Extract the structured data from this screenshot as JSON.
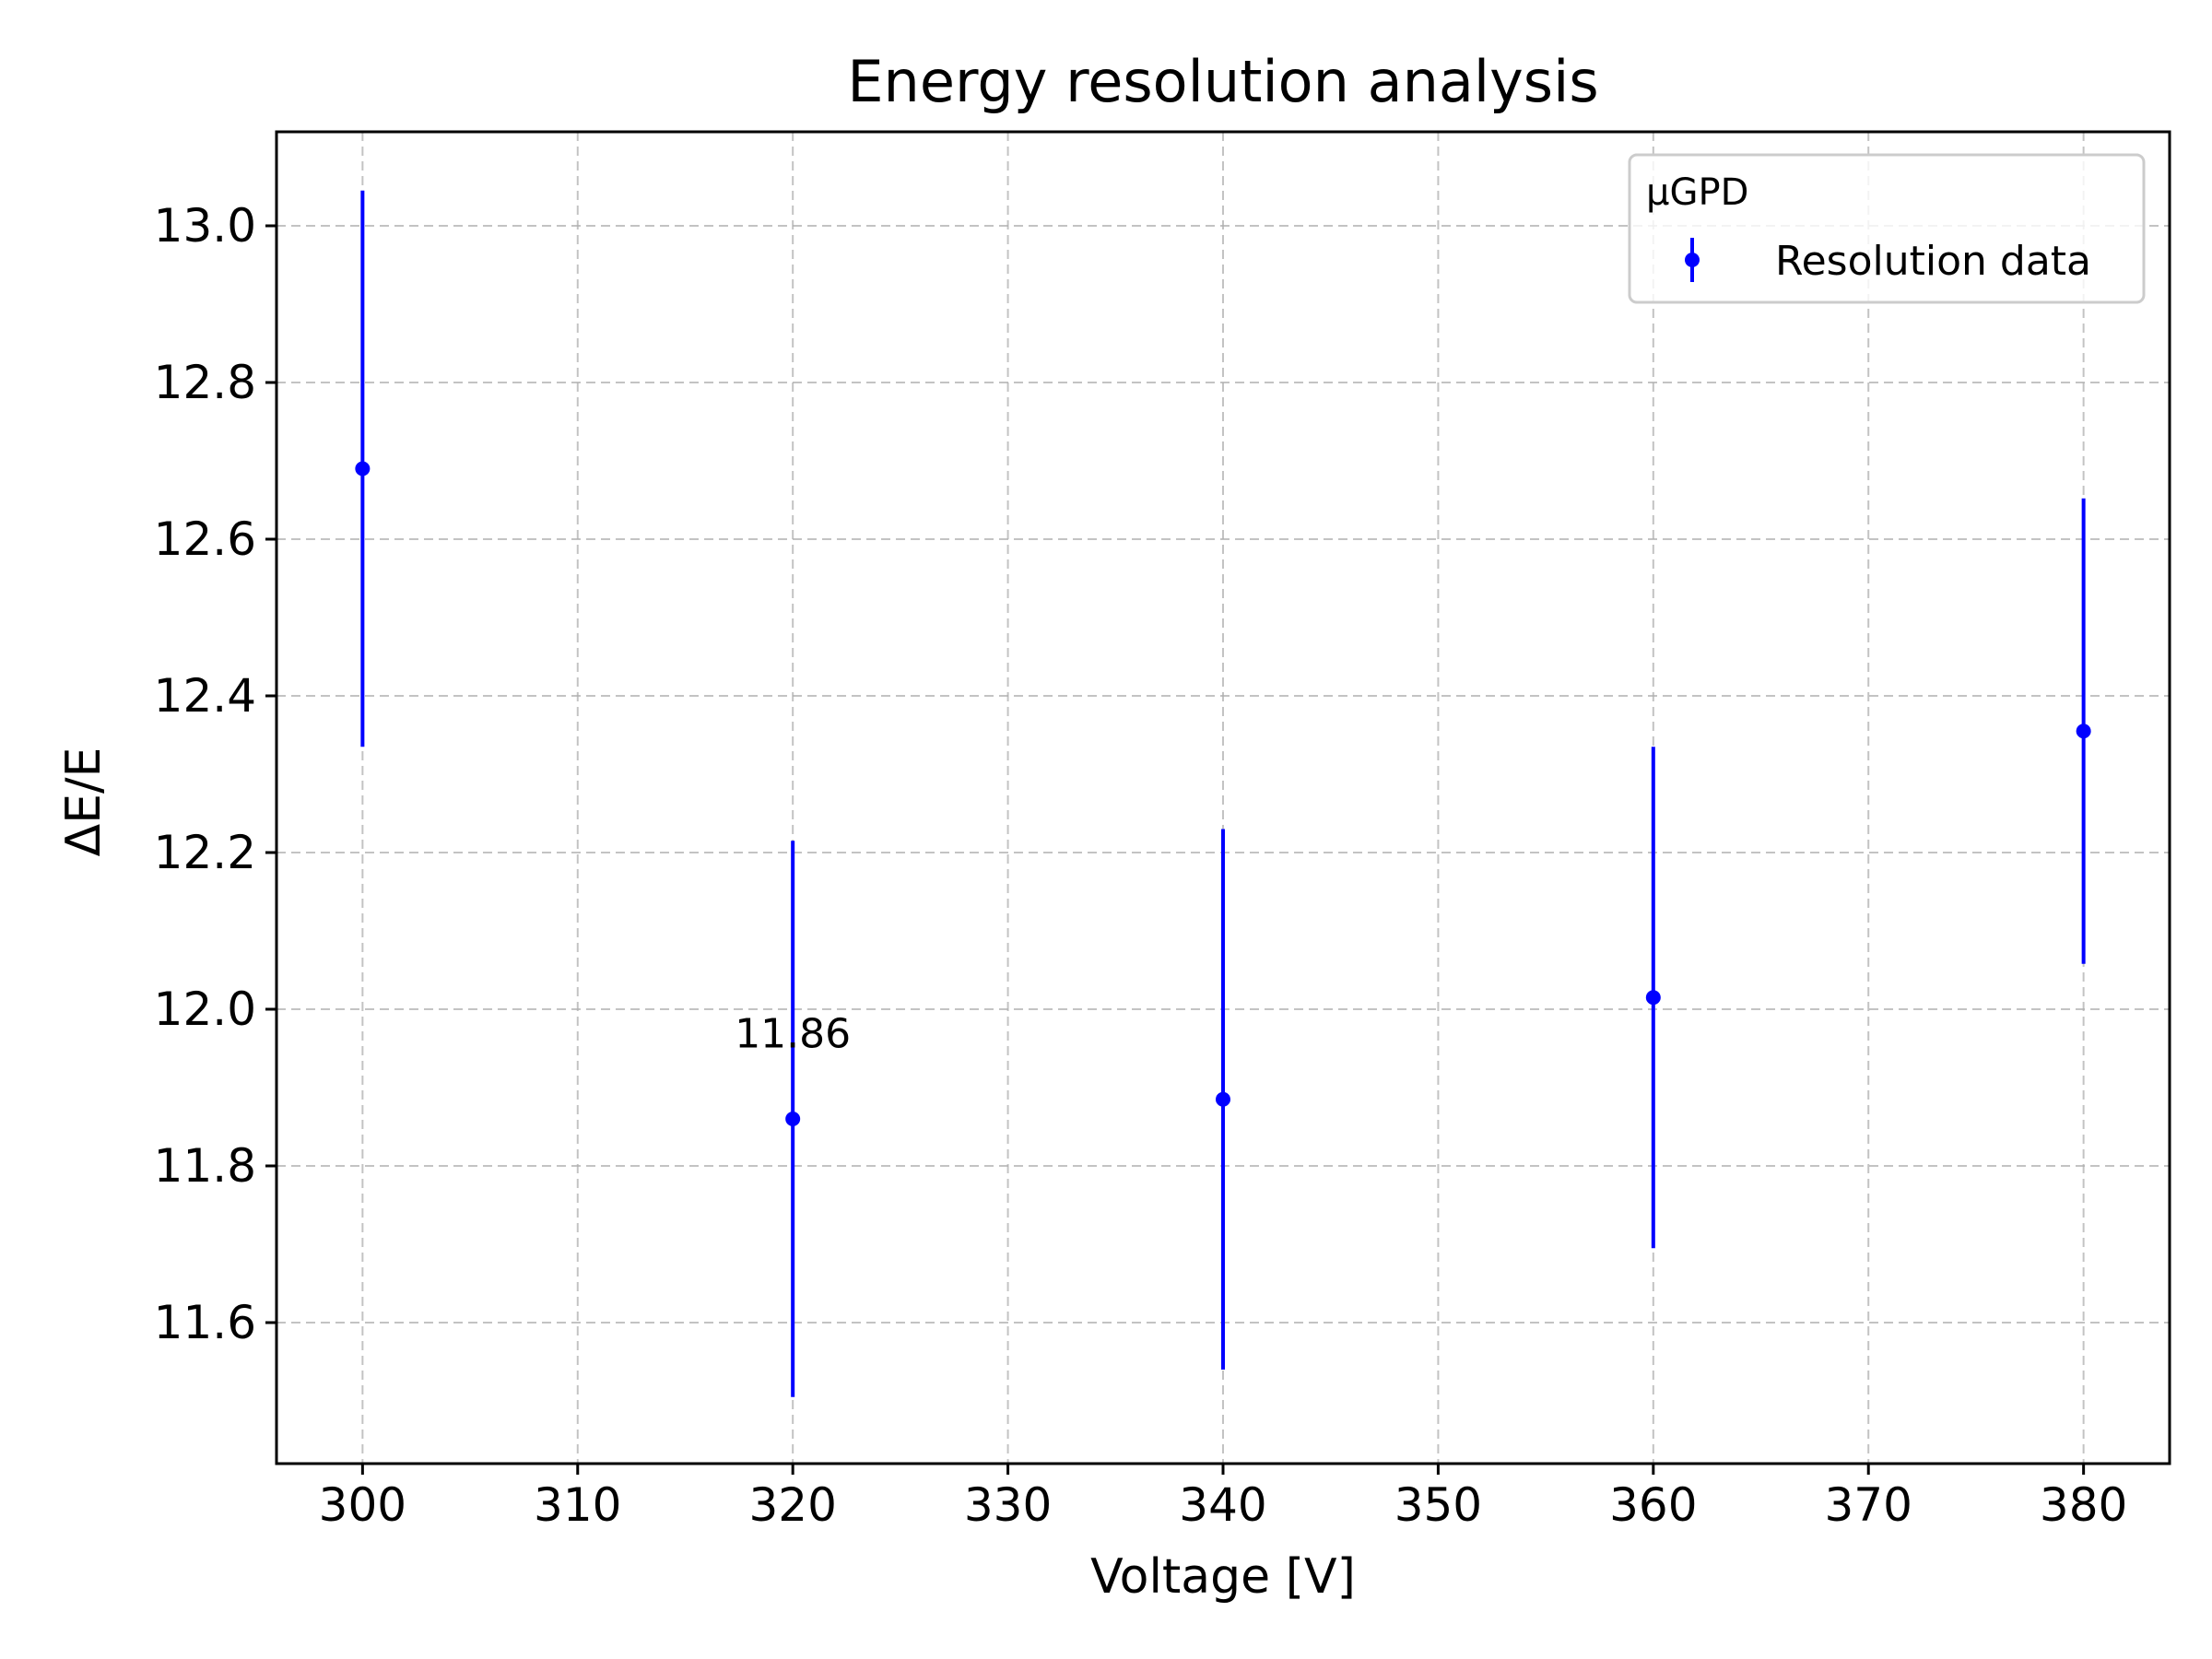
{
  "chart_data": {
    "type": "scatter",
    "title": "Energy resolution analysis",
    "xlabel": "Voltage [V]",
    "ylabel": "ΔE/E",
    "xlim": [
      296,
      384
    ],
    "ylim": [
      11.42,
      13.12
    ],
    "xticks": [
      300,
      310,
      320,
      330,
      340,
      350,
      360,
      370,
      380
    ],
    "xtick_labels": [
      "300",
      "310",
      "320",
      "330",
      "340",
      "350",
      "360",
      "370",
      "380"
    ],
    "yticks": [
      11.6,
      11.8,
      12.0,
      12.2,
      12.4,
      12.6,
      12.8,
      13.0
    ],
    "ytick_labels": [
      "11.6",
      "11.8",
      "12.0",
      "12.2",
      "12.4",
      "12.6",
      "12.8",
      "13.0"
    ],
    "grid": true,
    "series": [
      {
        "name": "Resolution data",
        "color": "#0000ff",
        "x": [
          300,
          320,
          340,
          360,
          380
        ],
        "y": [
          12.69,
          11.86,
          11.885,
          12.015,
          12.355
        ],
        "yerr": [
          0.355,
          0.355,
          0.345,
          0.32,
          0.297
        ]
      }
    ],
    "legend": {
      "title": "μGPD",
      "location": "top-right",
      "entries": [
        "Resolution data"
      ]
    },
    "annotations": [
      {
        "text": "11.86",
        "x": 320,
        "y": 11.97
      }
    ]
  }
}
